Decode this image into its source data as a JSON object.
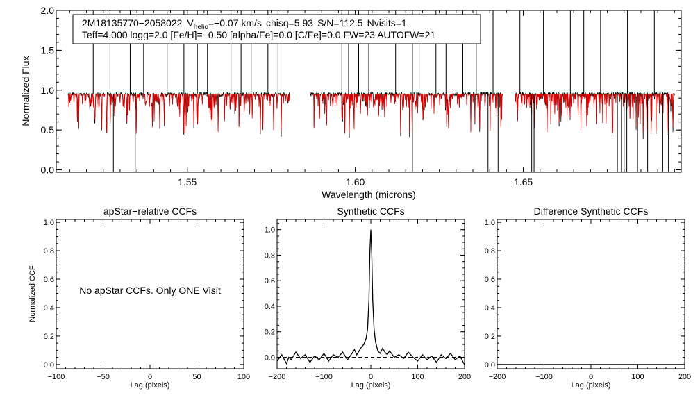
{
  "colors": {
    "observed": "#000000",
    "model": "#e00000",
    "axis": "#000000",
    "background": "#ffffff"
  },
  "info_box": {
    "star_id": "2M18135770−2058022",
    "vhelio_label": "V",
    "vhelio_sub": "helio",
    "vhelio_value": "=−0.07 km/s",
    "chisq": "chisq=5.93",
    "sn": "S/N=112.5",
    "nvisits": "Nvisits=1",
    "line2": "Teff=4,000 logg=2.0 [Fe/H]=−0.50 [alpha/Fe]=0.0 [C/Fe]=0.0 FW=23 AUTOFW=21"
  },
  "chart_data": [
    {
      "type": "line",
      "title": "",
      "xlabel": "Wavelength (microns)",
      "ylabel": "Normalized Flux",
      "xlim": [
        1.511,
        1.697
      ],
      "ylim": [
        -0.03,
        2.0
      ],
      "xticks": [
        1.55,
        1.6,
        1.65
      ],
      "xtick_labels": [
        "1.55",
        "1.60",
        "1.65"
      ],
      "yticks": [
        0.0,
        0.5,
        1.0,
        1.5,
        2.0
      ],
      "ytick_labels": [
        "0.0",
        "0.5",
        "1.0",
        "1.5",
        "2.0"
      ],
      "chip_ranges": [
        [
          1.5145,
          1.5805
        ],
        [
          1.5865,
          1.644
        ],
        [
          1.6475,
          1.695
        ]
      ],
      "continuum": 0.95,
      "series": [
        {
          "name": "observed spectrum",
          "color": "#000000"
        },
        {
          "name": "synthetic model",
          "color": "#e00000"
        }
      ],
      "spikes_up": [
        1.522,
        1.527,
        1.533,
        1.537,
        1.544,
        1.549,
        1.553,
        1.556,
        1.563,
        1.566,
        1.569,
        1.574,
        1.577,
        1.596,
        1.598,
        1.601,
        1.604,
        1.612,
        1.617,
        1.619,
        1.624,
        1.627,
        1.632,
        1.636,
        1.641,
        1.649,
        1.656,
        1.664,
        1.668,
        1.673,
        1.681,
        1.689
      ],
      "spikes_down": [
        1.528,
        1.5345,
        1.617,
        1.6395,
        1.6425,
        1.6525,
        1.6532,
        1.678,
        1.6792,
        1.68,
        1.6808,
        1.684,
        1.687,
        1.6915,
        1.6932
      ]
    },
    {
      "type": "line",
      "title": "apStar−relative CCFs",
      "xlabel": "Lag (pixels)",
      "ylabel": "Normalized CCF",
      "xlim": [
        -100,
        100
      ],
      "ylim": [
        -0.03,
        1.02
      ],
      "xticks": [
        -100,
        -50,
        0,
        50,
        100
      ],
      "xtick_labels": [
        "−100",
        "−50",
        "0",
        "50",
        "100"
      ],
      "yticks": [
        0.0,
        0.2,
        0.4,
        0.6,
        0.8,
        1.0
      ],
      "ytick_labels": [
        "0.0",
        "0.2",
        "0.4",
        "0.6",
        "0.8",
        "1.0"
      ],
      "annotation": "No apStar CCFs.  Only ONE Visit",
      "series": []
    },
    {
      "type": "line",
      "title": "Synthetic CCFs",
      "xlabel": "Lag (pixels)",
      "ylabel": "",
      "xlim": [
        -200,
        200
      ],
      "ylim": [
        -0.09,
        1.08
      ],
      "xticks": [
        -200,
        -100,
        0,
        100,
        200
      ],
      "xtick_labels": [
        "−200",
        "−100",
        "0",
        "100",
        "200"
      ],
      "yticks": [
        0.0,
        0.2,
        0.4,
        0.6,
        0.8,
        1.0
      ],
      "ytick_labels": [
        "0.0",
        "0.2",
        "0.4",
        "0.6",
        "0.8",
        "1.0"
      ],
      "reference_line_y": 0.0,
      "series": [
        {
          "name": "synthetic CCF",
          "x": [
            -200,
            -190,
            -180,
            -175,
            -170,
            -160,
            -150,
            -140,
            -130,
            -120,
            -110,
            -100,
            -90,
            -80,
            -70,
            -60,
            -50,
            -40,
            -35,
            -30,
            -25,
            -20,
            -15,
            -10,
            -7,
            -4,
            -2,
            0,
            2,
            4,
            7,
            10,
            15,
            20,
            25,
            30,
            35,
            40,
            50,
            60,
            70,
            80,
            90,
            100,
            110,
            120,
            130,
            140,
            150,
            160,
            170,
            180,
            190,
            200
          ],
          "values": [
            -0.03,
            0.02,
            -0.05,
            0.0,
            -0.02,
            0.04,
            -0.01,
            0.02,
            -0.04,
            0.01,
            -0.02,
            0.03,
            -0.03,
            0.02,
            0.0,
            0.04,
            -0.02,
            0.03,
            0.06,
            0.02,
            0.05,
            0.08,
            0.1,
            0.15,
            0.22,
            0.45,
            0.82,
            1.0,
            0.8,
            0.45,
            0.22,
            0.12,
            0.05,
            0.03,
            0.07,
            0.04,
            0.02,
            0.05,
            0.0,
            0.02,
            -0.01,
            0.04,
            0.0,
            -0.03,
            0.02,
            -0.02,
            0.01,
            -0.04,
            0.02,
            -0.01,
            0.03,
            -0.02,
            0.01,
            -0.06
          ]
        }
      ]
    },
    {
      "type": "line",
      "title": "Difference Synthetic CCFs",
      "xlabel": "Lag (pixels)",
      "ylabel": "",
      "xlim": [
        -200,
        200
      ],
      "ylim": [
        -0.03,
        1.02
      ],
      "xticks": [
        -200,
        -100,
        0,
        100,
        200
      ],
      "xtick_labels": [
        "−200",
        "−100",
        "0",
        "100",
        "200"
      ],
      "yticks": [
        0.0,
        0.2,
        0.4,
        0.6,
        0.8,
        1.0
      ],
      "ytick_labels": [
        "0.0",
        "0.2",
        "0.4",
        "0.6",
        "0.8",
        "1.0"
      ],
      "series": [
        {
          "name": "difference CCF",
          "x": [
            -200,
            200
          ],
          "values": [
            0.0,
            0.0
          ]
        }
      ]
    }
  ]
}
